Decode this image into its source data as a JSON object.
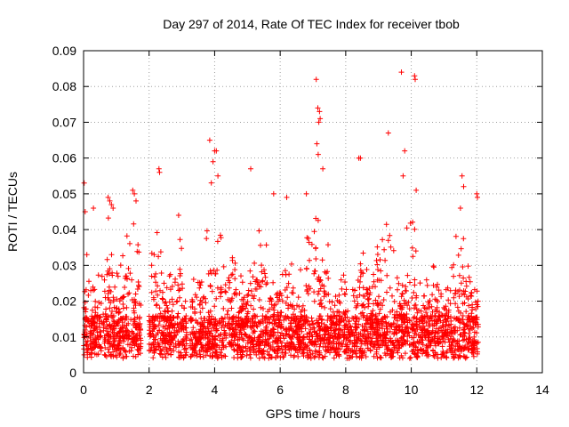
{
  "chart_data": {
    "type": "scatter",
    "title": "Day 297 of 2014, Rate Of TEC Index for receiver tbob",
    "xlabel": "GPS time / hours",
    "ylabel": "ROTI / TECUs",
    "xlim": [
      0,
      14
    ],
    "ylim": [
      0,
      0.09
    ],
    "x_ticks": [
      0,
      2,
      4,
      6,
      8,
      10,
      12,
      14
    ],
    "x_tick_labels": [
      "0",
      "2",
      "4",
      "6",
      "8",
      "10",
      "12",
      "14"
    ],
    "y_ticks": [
      0,
      0.01,
      0.02,
      0.03,
      0.04,
      0.05,
      0.06,
      0.07,
      0.08,
      0.09
    ],
    "y_tick_labels": [
      "0",
      "0.01",
      "0.02",
      "0.03",
      "0.04",
      "0.05",
      "0.06",
      "0.07",
      "0.08",
      "0.09"
    ],
    "grid": true,
    "marker": "+",
    "color": "#ff0000",
    "highlight_points": [
      {
        "x": 0.02,
        "y": 0.053
      },
      {
        "x": 0.05,
        "y": 0.045
      },
      {
        "x": 0.1,
        "y": 0.033
      },
      {
        "x": 0.3,
        "y": 0.046
      },
      {
        "x": 0.75,
        "y": 0.049
      },
      {
        "x": 0.8,
        "y": 0.048
      },
      {
        "x": 0.85,
        "y": 0.047
      },
      {
        "x": 0.9,
        "y": 0.046
      },
      {
        "x": 1.5,
        "y": 0.051
      },
      {
        "x": 1.55,
        "y": 0.05
      },
      {
        "x": 1.6,
        "y": 0.048
      },
      {
        "x": 2.3,
        "y": 0.057
      },
      {
        "x": 2.32,
        "y": 0.056
      },
      {
        "x": 2.9,
        "y": 0.044
      },
      {
        "x": 3.85,
        "y": 0.065
      },
      {
        "x": 3.95,
        "y": 0.059
      },
      {
        "x": 4.0,
        "y": 0.062
      },
      {
        "x": 4.05,
        "y": 0.062
      },
      {
        "x": 4.1,
        "y": 0.055
      },
      {
        "x": 5.1,
        "y": 0.057
      },
      {
        "x": 5.8,
        "y": 0.05
      },
      {
        "x": 6.2,
        "y": 0.049
      },
      {
        "x": 6.8,
        "y": 0.05
      },
      {
        "x": 7.1,
        "y": 0.082
      },
      {
        "x": 7.15,
        "y": 0.074
      },
      {
        "x": 7.2,
        "y": 0.073
      },
      {
        "x": 7.22,
        "y": 0.071
      },
      {
        "x": 7.18,
        "y": 0.07
      },
      {
        "x": 7.12,
        "y": 0.064
      },
      {
        "x": 7.16,
        "y": 0.061
      },
      {
        "x": 7.3,
        "y": 0.057
      },
      {
        "x": 8.4,
        "y": 0.06
      },
      {
        "x": 8.45,
        "y": 0.06
      },
      {
        "x": 9.3,
        "y": 0.067
      },
      {
        "x": 9.7,
        "y": 0.084
      },
      {
        "x": 9.8,
        "y": 0.062
      },
      {
        "x": 9.75,
        "y": 0.055
      },
      {
        "x": 10.1,
        "y": 0.083
      },
      {
        "x": 10.12,
        "y": 0.082
      },
      {
        "x": 10.15,
        "y": 0.051
      },
      {
        "x": 11.55,
        "y": 0.055
      },
      {
        "x": 11.6,
        "y": 0.052
      },
      {
        "x": 11.5,
        "y": 0.046
      },
      {
        "x": 12.0,
        "y": 0.05
      },
      {
        "x": 12.02,
        "y": 0.049
      }
    ],
    "activity_bursts": [
      {
        "start": 0.0,
        "end": 0.45,
        "peak": 0.033
      },
      {
        "start": 0.45,
        "end": 1.1,
        "peak": 0.048
      },
      {
        "start": 1.1,
        "end": 1.75,
        "peak": 0.05
      },
      {
        "start": 2.0,
        "end": 2.55,
        "peak": 0.045
      },
      {
        "start": 2.55,
        "end": 3.15,
        "peak": 0.04
      },
      {
        "start": 3.25,
        "end": 3.7,
        "peak": 0.03
      },
      {
        "start": 3.7,
        "end": 4.3,
        "peak": 0.058
      },
      {
        "start": 4.3,
        "end": 5.0,
        "peak": 0.037
      },
      {
        "start": 5.0,
        "end": 5.8,
        "peak": 0.04
      },
      {
        "start": 5.8,
        "end": 6.6,
        "peak": 0.033
      },
      {
        "start": 6.6,
        "end": 7.6,
        "peak": 0.048
      },
      {
        "start": 7.6,
        "end": 8.1,
        "peak": 0.022
      },
      {
        "start": 8.1,
        "end": 8.8,
        "peak": 0.035
      },
      {
        "start": 8.8,
        "end": 9.6,
        "peak": 0.043
      },
      {
        "start": 9.6,
        "end": 10.3,
        "peak": 0.045
      },
      {
        "start": 10.3,
        "end": 11.0,
        "peak": 0.022
      },
      {
        "start": 11.0,
        "end": 12.05,
        "peak": 0.04
      }
    ]
  }
}
